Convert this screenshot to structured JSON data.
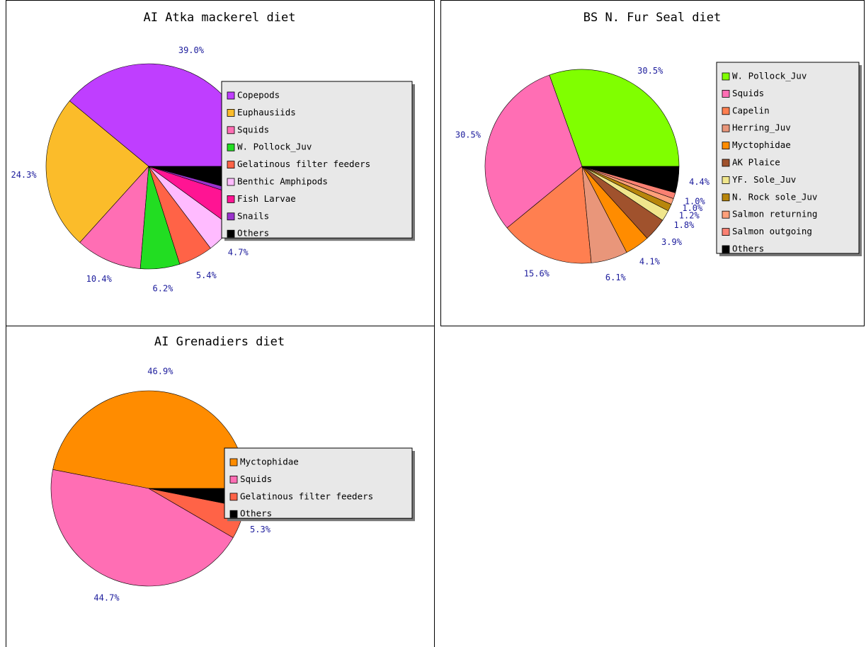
{
  "chart_data": [
    {
      "type": "pie",
      "title": "AI Atka mackerel diet",
      "categories": [
        "Copepods",
        "Euphausiids",
        "Squids",
        "W. Pollock_Juv",
        "Gelatinous filter feeders",
        "Benthic Amphipods",
        "Fish Larvae",
        "Snails",
        "Others"
      ],
      "values": [
        39.0,
        24.3,
        10.4,
        6.2,
        5.4,
        4.7,
        5.0,
        0.8,
        4.2
      ],
      "value_labels": [
        "39.0%",
        "24.3%",
        "10.4%",
        "6.2%",
        "5.4%",
        "4.7%",
        null,
        null,
        null
      ],
      "colors": [
        "#bf3eff",
        "#fbbc2a",
        "#ff6eb4",
        "#22dd22",
        "#ff6347",
        "#ffbbff",
        "#ff1493",
        "#9932cc",
        "#000000"
      ]
    },
    {
      "type": "pie",
      "title": "BS N. Fur Seal diet",
      "categories": [
        "W. Pollock_Juv",
        "Squids",
        "Capelin",
        "Herring_Juv",
        "Myctophidae",
        "AK Plaice",
        "YF. Sole_Juv",
        "N. Rock sole_Juv",
        "Salmon returning",
        "Salmon outgoing",
        "Others"
      ],
      "values": [
        30.5,
        30.5,
        15.6,
        6.1,
        4.1,
        3.9,
        1.8,
        1.2,
        1.0,
        1.0,
        4.4
      ],
      "value_labels": [
        "30.5%",
        "30.5%",
        "15.6%",
        "6.1%",
        "4.1%",
        "3.9%",
        "1.8%",
        "1.2%",
        "1.0%",
        "1.0%",
        "4.4%"
      ],
      "colors": [
        "#80ff00",
        "#ff6eb4",
        "#ff7f50",
        "#e9967a",
        "#ff8c00",
        "#a0522d",
        "#f0e68c",
        "#b8860b",
        "#ffa07a",
        "#fa8072",
        "#000000"
      ]
    },
    {
      "type": "pie",
      "title": "AI Grenadiers diet",
      "categories": [
        "Myctophidae",
        "Squids",
        "Gelatinous filter feeders",
        "Others"
      ],
      "values": [
        46.9,
        44.7,
        5.3,
        3.1
      ],
      "value_labels": [
        "46.9%",
        "44.7%",
        "5.3%",
        null
      ],
      "colors": [
        "#ff8c00",
        "#ff6eb4",
        "#ff6347",
        "#000000"
      ]
    }
  ]
}
